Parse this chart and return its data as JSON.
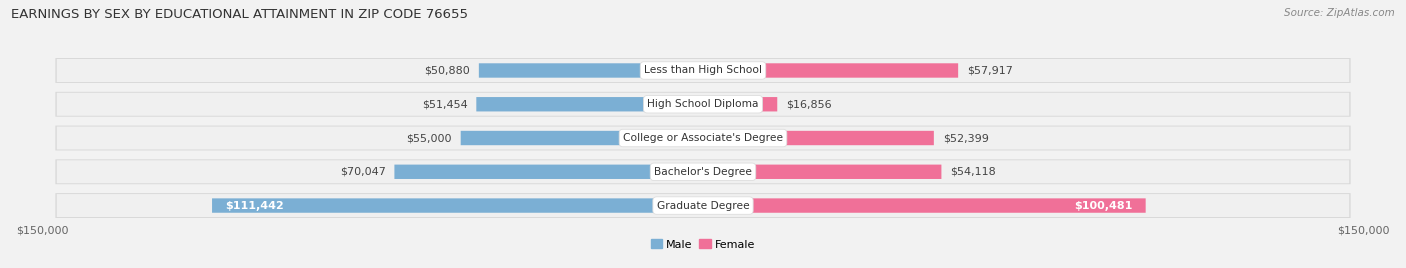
{
  "title": "EARNINGS BY SEX BY EDUCATIONAL ATTAINMENT IN ZIP CODE 76655",
  "source": "Source: ZipAtlas.com",
  "categories": [
    "Less than High School",
    "High School Diploma",
    "College or Associate's Degree",
    "Bachelor's Degree",
    "Graduate Degree"
  ],
  "male_values": [
    50880,
    51454,
    55000,
    70047,
    111442
  ],
  "female_values": [
    57917,
    16856,
    52399,
    54118,
    100481
  ],
  "male_color": "#7bafd4",
  "female_color": "#f07098",
  "male_label": "Male",
  "female_label": "Female",
  "axis_limit": 150000,
  "fig_bg": "#f2f2f2",
  "row_bg": "#e8e8e8",
  "bar_bg_inner": "#f7f7f7",
  "title_fontsize": 9.5,
  "label_fontsize": 8.0,
  "tick_fontsize": 8.0,
  "source_fontsize": 7.5,
  "label_color_threshold": 85000
}
